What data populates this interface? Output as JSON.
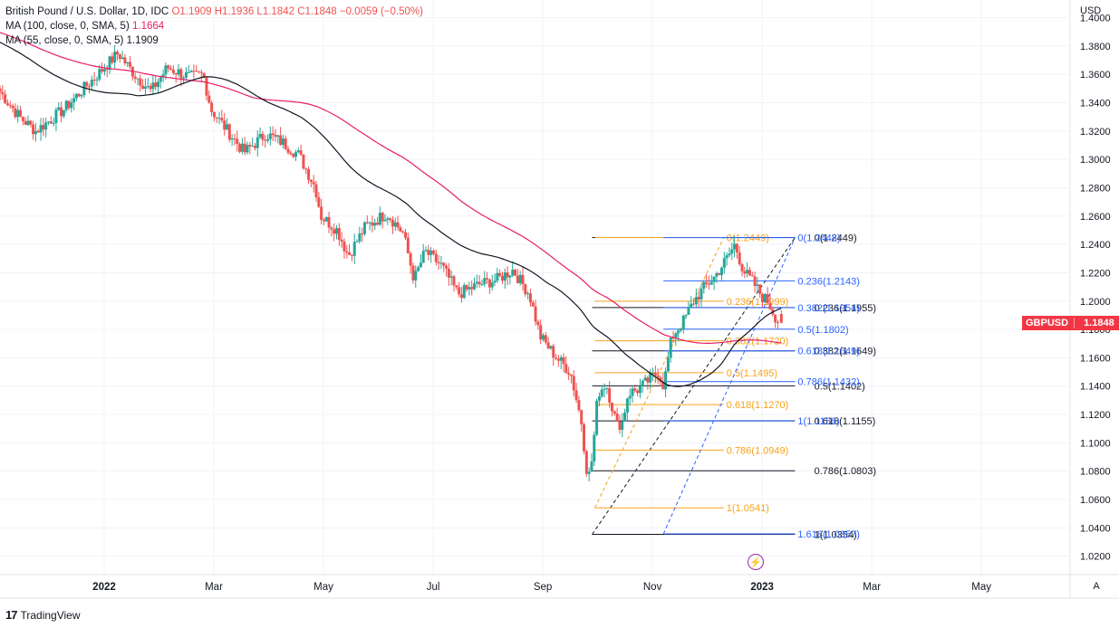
{
  "header": {
    "symbol_line": "British Pound / U.S. Dollar, 1D, IDC",
    "ohlc": "O1.1909 H1.1936 L1.1842 C1.1848 −0.0059 (−0.50%)",
    "ma100": "MA (100, close, 0, SMA, 5)",
    "ma100_value": "1.1664",
    "ma55": "MA (55, close, 0, SMA, 5)",
    "ma55_value": "1.1909"
  },
  "footer": {
    "logo": "TradingView"
  },
  "price_tag": {
    "symbol": "GBPUSD",
    "price": "1.1848"
  },
  "buttons": {
    "auto": "A",
    "bolt": "⚡"
  },
  "colors": {
    "up": "#26a69a",
    "down": "#ef5350",
    "ma100": "#e91e63",
    "ma55": "#131722",
    "fib_orange": "#f7a21b",
    "fib_blue": "#2962ff",
    "fib_black": "#131722"
  },
  "chart_data": {
    "type": "candlestick",
    "currency_label": "USD",
    "y_ticks": [
      "1.4000",
      "1.3800",
      "1.3600",
      "1.3400",
      "1.3200",
      "1.3000",
      "1.2800",
      "1.2600",
      "1.2400",
      "1.2200",
      "1.2000",
      "1.1800",
      "1.1600",
      "1.1400",
      "1.1200",
      "1.1000",
      "1.0800",
      "1.0600",
      "1.0400",
      "1.0200"
    ],
    "x_ticks": [
      {
        "label": "2022",
        "month": 12.0
      },
      {
        "label": "Mar",
        "month": 14.0
      },
      {
        "label": "May",
        "month": 16.0
      },
      {
        "label": "Jul",
        "month": 18.0
      },
      {
        "label": "Sep",
        "month": 20.0
      },
      {
        "label": "Nov",
        "month": 22.0
      },
      {
        "label": "2023",
        "month": 24.0
      },
      {
        "label": "Mar",
        "month": 26.0
      },
      {
        "label": "May",
        "month": 28.0
      }
    ],
    "ylim": [
      1.007,
      1.4125
    ],
    "xlim_months": [
      10.1,
      29.6
    ],
    "path_anchors": [
      [
        10.1,
        1.35
      ],
      [
        10.5,
        1.33
      ],
      [
        10.8,
        1.32
      ],
      [
        11.3,
        1.335
      ],
      [
        11.8,
        1.355
      ],
      [
        12.3,
        1.375
      ],
      [
        12.6,
        1.36
      ],
      [
        12.9,
        1.348
      ],
      [
        13.2,
        1.365
      ],
      [
        13.6,
        1.358
      ],
      [
        13.85,
        1.36
      ],
      [
        14.0,
        1.335
      ],
      [
        14.3,
        1.32
      ],
      [
        14.6,
        1.305
      ],
      [
        15.0,
        1.318
      ],
      [
        15.3,
        1.312
      ],
      [
        15.6,
        1.303
      ],
      [
        15.9,
        1.28
      ],
      [
        16.0,
        1.26
      ],
      [
        16.3,
        1.25
      ],
      [
        16.5,
        1.232
      ],
      [
        16.8,
        1.252
      ],
      [
        17.2,
        1.262
      ],
      [
        17.5,
        1.248
      ],
      [
        17.7,
        1.215
      ],
      [
        17.9,
        1.235
      ],
      [
        18.2,
        1.225
      ],
      [
        18.5,
        1.205
      ],
      [
        18.9,
        1.212
      ],
      [
        19.2,
        1.215
      ],
      [
        19.5,
        1.222
      ],
      [
        19.8,
        1.205
      ],
      [
        20.0,
        1.175
      ],
      [
        20.3,
        1.16
      ],
      [
        20.55,
        1.15
      ],
      [
        20.75,
        1.115
      ],
      [
        20.87,
        1.073
      ],
      [
        20.95,
        1.09
      ],
      [
        21.05,
        1.135
      ],
      [
        21.2,
        1.142
      ],
      [
        21.4,
        1.112
      ],
      [
        21.5,
        1.115
      ],
      [
        21.6,
        1.135
      ],
      [
        21.8,
        1.138
      ],
      [
        22.0,
        1.145
      ],
      [
        22.15,
        1.15
      ],
      [
        22.25,
        1.14
      ],
      [
        22.4,
        1.175
      ],
      [
        22.6,
        1.185
      ],
      [
        22.8,
        1.2
      ],
      [
        23.0,
        1.21
      ],
      [
        23.2,
        1.218
      ],
      [
        23.4,
        1.23
      ],
      [
        23.55,
        1.24
      ],
      [
        23.7,
        1.222
      ],
      [
        23.9,
        1.212
      ],
      [
        24.05,
        1.203
      ],
      [
        24.15,
        1.2
      ],
      [
        24.3,
        1.188
      ],
      [
        24.35,
        1.1848
      ]
    ],
    "last_candle": {
      "open": 1.1909,
      "high": 1.1936,
      "low": 1.1842,
      "close": 1.1848
    },
    "fib_retracements": [
      {
        "color": "black",
        "from_month": 20.9,
        "to_month": 24.6,
        "label_month": 24.9,
        "levels": [
          {
            "label": "0(1.2449)",
            "price": 1.2449
          },
          {
            "label": "0.236(1.1955)",
            "price": 1.1955
          },
          {
            "label": "0.382(1.1649)",
            "price": 1.1649
          },
          {
            "label": "0.5(1.1402)",
            "price": 1.1402
          },
          {
            "label": "0.618(1.1155)",
            "price": 1.1155
          },
          {
            "label": "0.786(1.0803)",
            "price": 1.0803
          },
          {
            "label": "1(1.0354)",
            "price": 1.0354
          }
        ]
      },
      {
        "color": "orange",
        "from_month": 20.95,
        "to_month": 23.3,
        "label_month": 23.3,
        "levels": [
          {
            "label": "0(1.2449)",
            "price": 1.2449
          },
          {
            "label": "0.236(1.1999)",
            "price": 1.1999
          },
          {
            "label": "0.382(1.1720)",
            "price": 1.172
          },
          {
            "label": "0.5(1.1495)",
            "price": 1.1495
          },
          {
            "label": "0.618(1.1270)",
            "price": 1.127
          },
          {
            "label": "0.786(1.0949)",
            "price": 1.0949
          },
          {
            "label": "1(1.0541)",
            "price": 1.0541
          }
        ]
      },
      {
        "color": "blue",
        "from_month": 22.2,
        "to_month": 24.6,
        "label_month": 24.6,
        "levels": [
          {
            "label": "0(1.2448)",
            "price": 1.2448
          },
          {
            "label": "0.236(1.2143)",
            "price": 1.2143
          },
          {
            "label": "0.382(1.1954)",
            "price": 1.1954
          },
          {
            "label": "0.5(1.1802)",
            "price": 1.1802
          },
          {
            "label": "0.618(1.1649)",
            "price": 1.1649
          },
          {
            "label": "0.786(1.1432)",
            "price": 1.1432
          },
          {
            "label": "1(1.1156)",
            "price": 1.1156
          },
          {
            "label": "1.618(1.0357)",
            "price": 1.0357
          }
        ]
      }
    ]
  }
}
